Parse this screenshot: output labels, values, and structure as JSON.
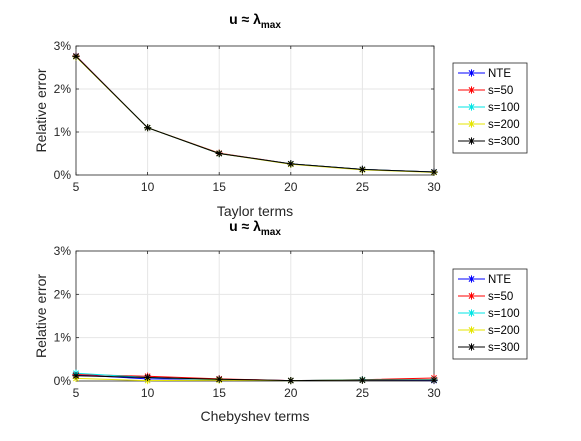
{
  "chart_data": [
    {
      "type": "line",
      "title_main": "u ≈ λ",
      "title_sub": "max",
      "xlabel": "Taylor terms",
      "ylabel": "Relative error",
      "xlim": [
        5,
        30
      ],
      "ylim": [
        0,
        3
      ],
      "xticks": [
        "5",
        "10",
        "15",
        "20",
        "25",
        "30"
      ],
      "yticks": [
        "0%",
        "1%",
        "2%",
        "3%"
      ],
      "grid": true,
      "legend_position": "right",
      "x": [
        5,
        10,
        15,
        20,
        25,
        30
      ],
      "series": [
        {
          "name": "NTE",
          "color": "#0000ff",
          "values": [
            2.77,
            1.1,
            0.5,
            0.26,
            0.13,
            0.07
          ]
        },
        {
          "name": "s=50",
          "color": "#ff0000",
          "values": [
            2.77,
            1.1,
            0.51,
            0.26,
            0.13,
            0.07
          ]
        },
        {
          "name": "s=100",
          "color": "#00e5e5",
          "values": [
            2.76,
            1.1,
            0.5,
            0.26,
            0.13,
            0.07
          ]
        },
        {
          "name": "s=200",
          "color": "#e5e500",
          "values": [
            2.75,
            1.1,
            0.5,
            0.25,
            0.12,
            0.06
          ]
        },
        {
          "name": "s=300",
          "color": "#000000",
          "values": [
            2.76,
            1.1,
            0.5,
            0.26,
            0.13,
            0.07
          ]
        }
      ]
    },
    {
      "type": "line",
      "title_main": "u ≈ λ",
      "title_sub": "max",
      "xlabel": "Chebyshev terms",
      "ylabel": "Relative error",
      "xlim": [
        5,
        30
      ],
      "ylim": [
        0,
        3
      ],
      "xticks": [
        "5",
        "10",
        "15",
        "20",
        "25",
        "30"
      ],
      "yticks": [
        "0%",
        "1%",
        "2%",
        "3%"
      ],
      "grid": true,
      "legend_position": "right",
      "x": [
        5,
        10,
        15,
        20,
        25,
        30
      ],
      "series": [
        {
          "name": "NTE",
          "color": "#0000ff",
          "values": [
            0.14,
            0.05,
            0.04,
            0.01,
            0.02,
            0.01
          ]
        },
        {
          "name": "s=50",
          "color": "#ff0000",
          "values": [
            0.15,
            0.11,
            0.05,
            0.01,
            0.03,
            0.07
          ]
        },
        {
          "name": "s=100",
          "color": "#00e5e5",
          "values": [
            0.18,
            0.08,
            0.03,
            0.01,
            0.03,
            0.03
          ]
        },
        {
          "name": "s=200",
          "color": "#e5e500",
          "values": [
            0.06,
            0.01,
            0.02,
            0.01,
            0.02,
            0.02
          ]
        },
        {
          "name": "s=300",
          "color": "#000000",
          "values": [
            0.12,
            0.08,
            0.04,
            0.01,
            0.02,
            0.02
          ]
        }
      ]
    }
  ]
}
